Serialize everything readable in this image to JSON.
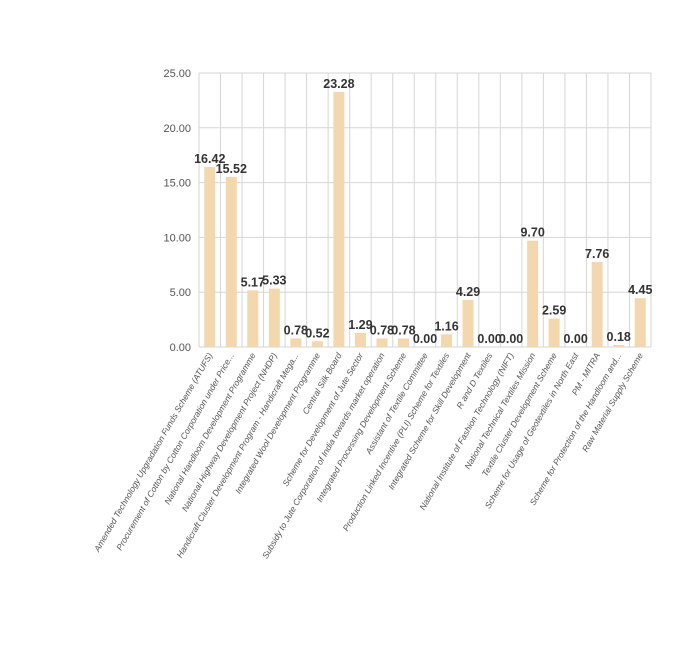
{
  "chart_data": {
    "type": "bar",
    "title": "",
    "xlabel": "",
    "ylabel": "",
    "ylim": [
      0,
      25
    ],
    "yticks": [
      "0.00",
      "5.00",
      "10.00",
      "15.00",
      "20.00",
      "25.00"
    ],
    "grid": "vertical and horizontal",
    "bar_color": "#F3D7AE",
    "categories": [
      "Amended Technology Upgradation Funds Scheme (ATUFS)",
      "Procurement of Cotton by Cotton Corporation under Price...",
      "National Handloom Development Programme",
      "National Highway Development Project (NHDP)",
      "Handicraft Cluster Development Program - Handicraft Mega...",
      "Integrated Wool Development Programme",
      "Central Silk Board",
      "Scheme for Development of Jute Sector",
      "Subsidy to Jute Corporation of India towards market operation",
      "Integrated Processing Development Scheme",
      "Assistant of Textile Committee",
      "Production Linked Incentive (PLI) Scheme for Textiles",
      "Integrated Scheme for Skill Development",
      "R and D Textiles",
      "National Institute of Fashion Technology (NIFT)",
      "National Technical Textiles Mission",
      "Textile Cluster Development Scheme",
      "Scheme for Usage of Geotextiles in North East",
      "PM - MITRA",
      "Scheme for Protection of the Handloom and...",
      "Raw Material Supply Scheme"
    ],
    "values": [
      16.42,
      15.52,
      5.17,
      5.33,
      0.78,
      0.52,
      23.28,
      1.29,
      0.78,
      0.78,
      0.0,
      1.16,
      4.29,
      0.0,
      0.0,
      9.7,
      2.59,
      0.0,
      7.76,
      0.18,
      4.45
    ],
    "data_labels": [
      "16.42",
      "15.52",
      "5.17",
      "5.33",
      "0.78",
      "0.52",
      "23.28",
      "1.29",
      "0.78",
      "0.78",
      "0.00",
      "1.16",
      "4.29",
      "0.00",
      "0.00",
      "9.70",
      "2.59",
      "0.00",
      "7.76",
      "0.18",
      "4.45"
    ]
  }
}
